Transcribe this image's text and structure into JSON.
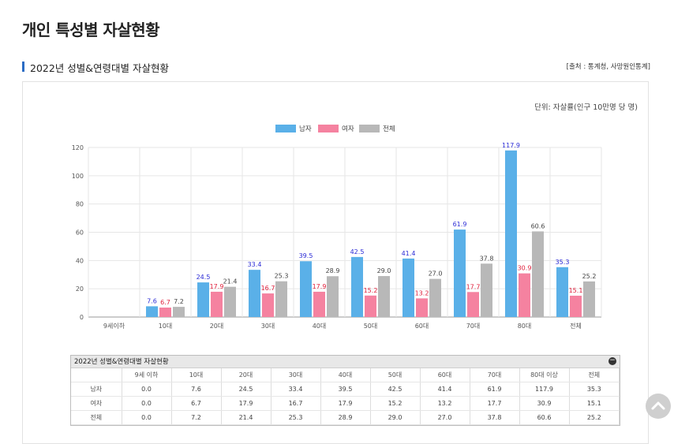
{
  "page": {
    "title": "개인 특성별 자살현황",
    "section_title": "2022년 성별&연령대별 자살현황",
    "source": "[출처 : 통계청, 사망원인통계]",
    "unit": "단위: 자살률(인구 10만명 당 명)"
  },
  "colors": {
    "male": "#5ab0e8",
    "female": "#f582a0",
    "total": "#b8b8b8",
    "male_label": "#2b2bd6",
    "female_label": "#e0203c",
    "total_label": "#444444"
  },
  "chart_data": {
    "type": "bar",
    "categories": [
      "9세이하",
      "10대",
      "20대",
      "30대",
      "40대",
      "50대",
      "60대",
      "70대",
      "80대",
      "전체"
    ],
    "series": [
      {
        "name": "남자",
        "values": [
          null,
          7.6,
          24.5,
          33.4,
          39.5,
          42.5,
          41.4,
          61.9,
          117.9,
          35.3
        ]
      },
      {
        "name": "여자",
        "values": [
          null,
          6.7,
          17.9,
          16.7,
          17.9,
          15.2,
          13.2,
          17.7,
          30.9,
          15.1
        ]
      },
      {
        "name": "전체",
        "values": [
          null,
          7.2,
          21.4,
          25.3,
          28.9,
          29.0,
          27.0,
          37.8,
          60.6,
          25.2
        ]
      }
    ],
    "ylim": [
      0,
      120
    ],
    "yticks": [
      "0",
      "20",
      "40",
      "60",
      "80",
      "100",
      "120"
    ],
    "grid": true,
    "legend": "top-center"
  },
  "table": {
    "title": "2022년 성별&연령대별 자살현황",
    "collapse_icon": "−",
    "columns": [
      "",
      "9세 이하",
      "10대",
      "20대",
      "30대",
      "40대",
      "50대",
      "60대",
      "70대",
      "80대 이상",
      "전체"
    ],
    "rows": [
      [
        "남자",
        "0.0",
        "7.6",
        "24.5",
        "33.4",
        "39.5",
        "42.5",
        "41.4",
        "61.9",
        "117.9",
        "35.3"
      ],
      [
        "여자",
        "0.0",
        "6.7",
        "17.9",
        "16.7",
        "17.9",
        "15.2",
        "13.2",
        "17.7",
        "30.9",
        "15.1"
      ],
      [
        "전체",
        "0.0",
        "7.2",
        "21.4",
        "25.3",
        "28.9",
        "29.0",
        "27.0",
        "37.8",
        "60.6",
        "25.2"
      ]
    ]
  }
}
